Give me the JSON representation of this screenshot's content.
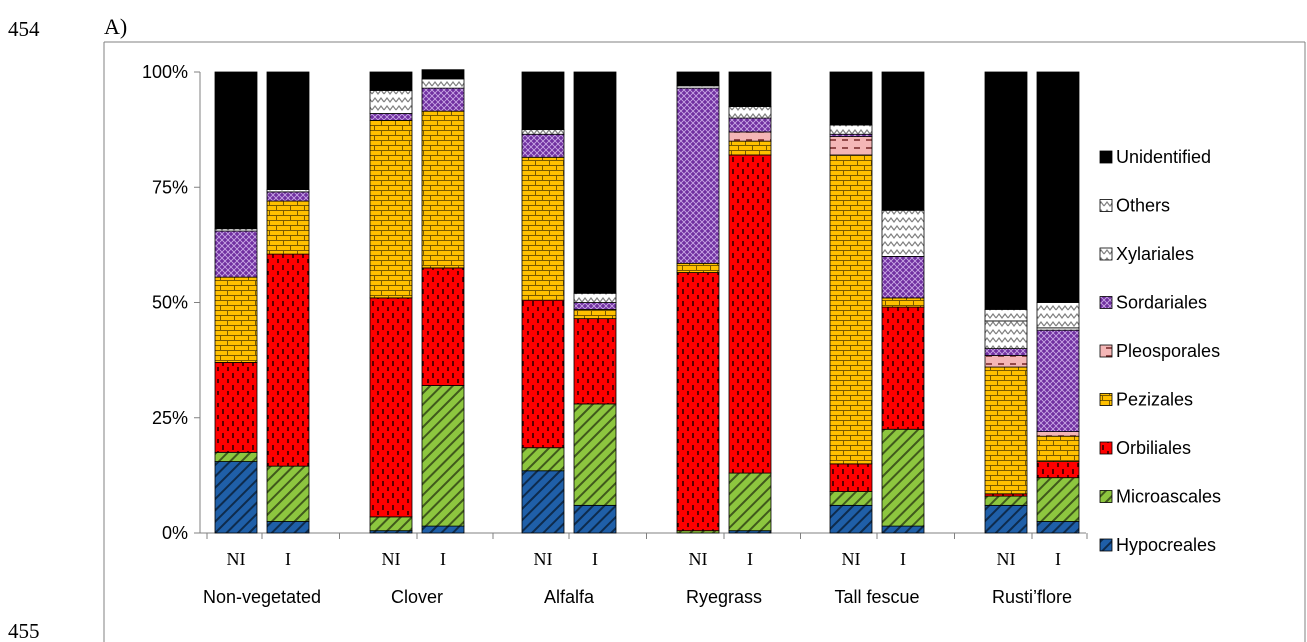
{
  "page": {
    "line_number_top": "454",
    "line_number_bottom": "455",
    "panel_label": "A)"
  },
  "chart_data": {
    "type": "bar",
    "stacked": true,
    "percent": true,
    "yticks": [
      "0%",
      "25%",
      "50%",
      "75%",
      "100%"
    ],
    "ylim": [
      0,
      100
    ],
    "groups": [
      "Non-vegetated",
      "Clover",
      "Alfalfa",
      "Ryegrass",
      "Tall fescue",
      "Rusti’flore"
    ],
    "treatments": [
      "NI",
      "I"
    ],
    "categories": [
      "Non-vegetated NI",
      "Non-vegetated I",
      "Clover NI",
      "Clover I",
      "Alfalfa NI",
      "Alfalfa I",
      "Ryegrass NI",
      "Ryegrass I",
      "Tall fescue NI",
      "Tall fescue I",
      "Rusti’flore NI",
      "Rusti’flore I"
    ],
    "legend_position": "right",
    "grid": false,
    "series": [
      {
        "name": "Hypocreales",
        "color": "#1f5fa8",
        "pattern": "diag",
        "values": [
          15.5,
          2.5,
          0.5,
          1.5,
          13.5,
          6.0,
          0.0,
          0.5,
          6.0,
          1.5,
          6.0,
          2.5
        ]
      },
      {
        "name": "Microascales",
        "color": "#8dc63f",
        "pattern": "diag",
        "values": [
          2.0,
          12.0,
          3.0,
          30.5,
          5.0,
          22.0,
          0.5,
          12.5,
          3.0,
          21.0,
          2.0,
          9.5
        ]
      },
      {
        "name": "Orbiliales",
        "color": "#ff0000",
        "pattern": "dash",
        "values": [
          19.5,
          46.0,
          47.5,
          25.5,
          32.0,
          18.5,
          56.0,
          69.0,
          6.0,
          26.5,
          0.5,
          3.5
        ]
      },
      {
        "name": "Pezizales",
        "color": "#ffc000",
        "pattern": "brick",
        "values": [
          18.5,
          11.5,
          38.5,
          34.0,
          31.0,
          2.0,
          2.0,
          3.0,
          67.0,
          2.0,
          27.5,
          5.5
        ]
      },
      {
        "name": "Pleosporales",
        "color": "#f4b6b6",
        "pattern": "dash2",
        "values": [
          0.0,
          0.0,
          0.0,
          0.0,
          0.0,
          0.0,
          0.0,
          2.0,
          4.0,
          0.0,
          2.5,
          1.0
        ]
      },
      {
        "name": "Sordariales",
        "color": "#7030a0",
        "pattern": "cross",
        "values": [
          10.0,
          2.0,
          1.5,
          5.0,
          5.0,
          1.5,
          38.0,
          3.0,
          0.5,
          9.0,
          1.5,
          22.0
        ]
      },
      {
        "name": "Xylariales",
        "color": "#ddd9c4",
        "pattern": "zigzag",
        "values": [
          0.0,
          0.0,
          0.0,
          0.0,
          0.0,
          0.0,
          0.0,
          0.0,
          0.0,
          0.0,
          6.0,
          0.5
        ]
      },
      {
        "name": "Others",
        "color": "#e6e6e6",
        "pattern": "zigzag",
        "values": [
          0.5,
          0.5,
          5.0,
          2.0,
          1.0,
          2.0,
          0.5,
          2.5,
          2.0,
          10.0,
          2.5,
          5.5
        ]
      },
      {
        "name": "Unidentified",
        "color": "#000000",
        "pattern": "solid",
        "values": [
          34.0,
          25.5,
          4.0,
          2.0,
          12.5,
          48.0,
          3.0,
          7.5,
          11.5,
          30.0,
          51.5,
          50.0
        ]
      }
    ]
  }
}
